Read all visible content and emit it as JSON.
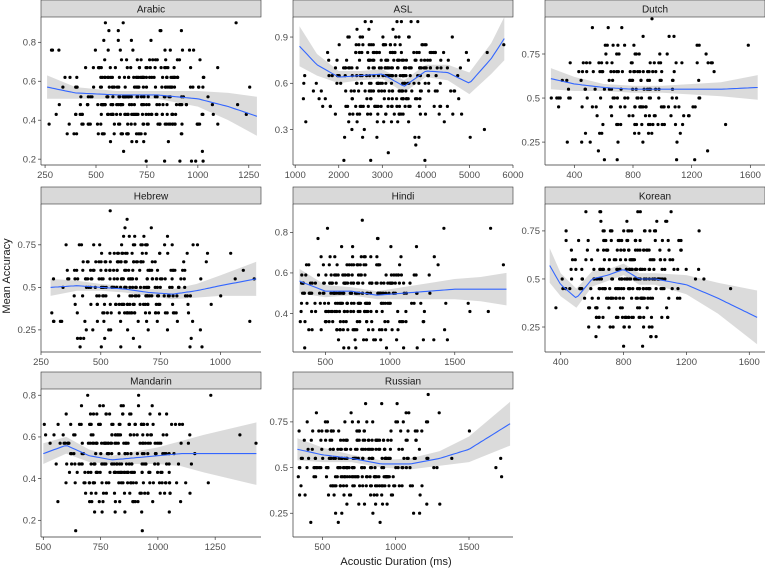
{
  "chart_data": {
    "type": "scatter",
    "xlabel": "Acoustic Duration (ms)",
    "ylabel": "Mean Accuracy",
    "colors": {
      "smooth": "#3366ff",
      "band": "#bdbdbd",
      "strip": "#d9d9d9",
      "points": "#000000"
    },
    "panels": [
      {
        "name": "Arabic",
        "xlim": [
          230,
          1310
        ],
        "ylim": [
          0.17,
          0.93
        ],
        "xticks": [
          250,
          500,
          750,
          1000,
          1250
        ],
        "yticks": [
          0.2,
          0.4,
          0.6,
          0.8
        ],
        "n_points": 330,
        "seed": 11,
        "x_range": [
          260,
          1290
        ],
        "x_center": 720,
        "x_spread": 190,
        "y_values": [
          0.19,
          0.24,
          0.29,
          0.33,
          0.38,
          0.43,
          0.48,
          0.52,
          0.57,
          0.62,
          0.67,
          0.71,
          0.76,
          0.81,
          0.86,
          0.9
        ],
        "y_center": 0.52,
        "y_spread": 0.14,
        "smooth": {
          "x": [
            260,
            400,
            600,
            800,
            1000,
            1150,
            1290
          ],
          "y": [
            0.57,
            0.54,
            0.53,
            0.53,
            0.51,
            0.47,
            0.42
          ]
        },
        "band": [
          0.06,
          0.03,
          0.02,
          0.02,
          0.04,
          0.07,
          0.1
        ]
      },
      {
        "name": "ASL",
        "xlim": [
          950,
          6000
        ],
        "ylim": [
          0.07,
          1.03
        ],
        "xticks": [
          1000,
          2000,
          3000,
          4000,
          5000,
          6000
        ],
        "yticks": [
          0.3,
          0.6,
          0.9
        ],
        "n_points": 330,
        "seed": 23,
        "x_range": [
          1100,
          5800
        ],
        "x_center": 3100,
        "x_spread": 750,
        "y_values": [
          0.1,
          0.15,
          0.2,
          0.25,
          0.3,
          0.35,
          0.4,
          0.45,
          0.5,
          0.55,
          0.6,
          0.65,
          0.7,
          0.75,
          0.8,
          0.85,
          0.9,
          0.95,
          1.0
        ],
        "y_center": 0.62,
        "y_spread": 0.18,
        "smooth": {
          "x": [
            1100,
            1500,
            2000,
            2500,
            3000,
            3500,
            4000,
            4500,
            5000,
            5500,
            5800
          ],
          "y": [
            0.84,
            0.72,
            0.64,
            0.65,
            0.66,
            0.58,
            0.68,
            0.67,
            0.6,
            0.76,
            0.89
          ]
        },
        "band": [
          0.13,
          0.07,
          0.04,
          0.03,
          0.03,
          0.04,
          0.04,
          0.05,
          0.07,
          0.1,
          0.14
        ]
      },
      {
        "name": "Dutch",
        "xlim": [
          200,
          1700
        ],
        "ylim": [
          0.12,
          0.96
        ],
        "xticks": [
          400,
          800,
          1200,
          1600
        ],
        "yticks": [
          0.25,
          0.5,
          0.75
        ],
        "n_points": 200,
        "seed": 37,
        "x_range": [
          240,
          1650
        ],
        "x_center": 800,
        "x_spread": 260,
        "y_values": [
          0.15,
          0.2,
          0.25,
          0.3,
          0.35,
          0.4,
          0.45,
          0.5,
          0.55,
          0.6,
          0.65,
          0.7,
          0.75,
          0.8,
          0.85,
          0.9,
          0.95
        ],
        "y_center": 0.55,
        "y_spread": 0.16,
        "smooth": {
          "x": [
            240,
            400,
            600,
            800,
            1000,
            1200,
            1400,
            1650
          ],
          "y": [
            0.61,
            0.58,
            0.56,
            0.55,
            0.55,
            0.55,
            0.55,
            0.56
          ]
        },
        "band": [
          0.06,
          0.04,
          0.02,
          0.02,
          0.02,
          0.03,
          0.04,
          0.07
        ]
      },
      {
        "name": "Hebrew",
        "xlim": [
          250,
          1170
        ],
        "ylim": [
          0.12,
          0.99
        ],
        "xticks": [
          250,
          500,
          750,
          1000
        ],
        "yticks": [
          0.25,
          0.5,
          0.75
        ],
        "n_points": 300,
        "seed": 41,
        "x_range": [
          290,
          1150
        ],
        "x_center": 620,
        "x_spread": 150,
        "y_values": [
          0.15,
          0.2,
          0.25,
          0.3,
          0.35,
          0.4,
          0.45,
          0.5,
          0.55,
          0.6,
          0.65,
          0.7,
          0.75,
          0.8,
          0.85,
          0.9,
          0.95
        ],
        "y_center": 0.5,
        "y_spread": 0.16,
        "smooth": {
          "x": [
            290,
            400,
            500,
            600,
            700,
            800,
            900,
            1000,
            1150
          ],
          "y": [
            0.5,
            0.51,
            0.5,
            0.49,
            0.47,
            0.46,
            0.48,
            0.51,
            0.55
          ]
        },
        "band": [
          0.05,
          0.03,
          0.02,
          0.02,
          0.02,
          0.03,
          0.04,
          0.06,
          0.1
        ]
      },
      {
        "name": "Hindi",
        "xlim": [
          250,
          1950
        ],
        "ylim": [
          0.21,
          0.94
        ],
        "xticks": [
          500,
          1000,
          1500
        ],
        "yticks": [
          0.4,
          0.6,
          0.8
        ],
        "n_points": 300,
        "seed": 53,
        "x_range": [
          300,
          1900
        ],
        "x_center": 700,
        "x_spread": 300,
        "y_values": [
          0.23,
          0.27,
          0.32,
          0.36,
          0.41,
          0.45,
          0.5,
          0.55,
          0.59,
          0.64,
          0.68,
          0.73,
          0.77,
          0.82,
          0.86,
          0.91
        ],
        "y_center": 0.5,
        "y_spread": 0.13,
        "smooth": {
          "x": [
            300,
            500,
            700,
            900,
            1100,
            1300,
            1500,
            1700,
            1900
          ],
          "y": [
            0.56,
            0.51,
            0.51,
            0.49,
            0.5,
            0.51,
            0.52,
            0.52,
            0.52
          ]
        },
        "band": [
          0.06,
          0.03,
          0.02,
          0.02,
          0.03,
          0.04,
          0.05,
          0.06,
          0.08
        ]
      },
      {
        "name": "Korean",
        "xlim": [
          300,
          1700
        ],
        "ylim": [
          0.12,
          0.89
        ],
        "xticks": [
          400,
          800,
          1200,
          1600
        ],
        "yticks": [
          0.25,
          0.5,
          0.75
        ],
        "n_points": 300,
        "seed": 67,
        "x_range": [
          330,
          1650
        ],
        "x_center": 800,
        "x_spread": 180,
        "y_values": [
          0.15,
          0.2,
          0.25,
          0.3,
          0.35,
          0.4,
          0.45,
          0.5,
          0.55,
          0.6,
          0.65,
          0.7,
          0.75,
          0.8,
          0.85
        ],
        "y_center": 0.5,
        "y_spread": 0.14,
        "smooth": {
          "x": [
            330,
            400,
            500,
            600,
            700,
            800,
            900,
            1000,
            1200,
            1400,
            1650
          ],
          "y": [
            0.57,
            0.47,
            0.4,
            0.5,
            0.52,
            0.55,
            0.5,
            0.5,
            0.47,
            0.4,
            0.3
          ]
        },
        "band": [
          0.09,
          0.06,
          0.05,
          0.04,
          0.03,
          0.03,
          0.03,
          0.03,
          0.05,
          0.08,
          0.14
        ]
      },
      {
        "name": "Mandarin",
        "xlim": [
          490,
          1450
        ],
        "ylim": [
          0.12,
          0.83
        ],
        "xticks": [
          500,
          750,
          1000,
          1250
        ],
        "yticks": [
          0.2,
          0.4,
          0.6,
          0.8
        ],
        "n_points": 300,
        "seed": 79,
        "x_range": [
          500,
          1430
        ],
        "x_center": 850,
        "x_spread": 140,
        "y_values": [
          0.15,
          0.2,
          0.24,
          0.29,
          0.33,
          0.38,
          0.43,
          0.47,
          0.52,
          0.57,
          0.61,
          0.66,
          0.71,
          0.75,
          0.8
        ],
        "y_center": 0.5,
        "y_spread": 0.13,
        "smooth": {
          "x": [
            500,
            600,
            700,
            800,
            900,
            1000,
            1100,
            1200,
            1430
          ],
          "y": [
            0.52,
            0.56,
            0.51,
            0.49,
            0.5,
            0.51,
            0.52,
            0.52,
            0.52
          ]
        },
        "band": [
          0.05,
          0.04,
          0.03,
          0.02,
          0.03,
          0.04,
          0.06,
          0.09,
          0.15
        ]
      },
      {
        "name": "Russian",
        "xlim": [
          300,
          1800
        ],
        "ylim": [
          0.12,
          0.93
        ],
        "xticks": [
          500,
          1000,
          1500
        ],
        "yticks": [
          0.25,
          0.5,
          0.75
        ],
        "n_points": 300,
        "seed": 97,
        "x_range": [
          330,
          1780
        ],
        "x_center": 750,
        "x_spread": 230,
        "y_values": [
          0.15,
          0.2,
          0.25,
          0.3,
          0.35,
          0.4,
          0.45,
          0.5,
          0.55,
          0.6,
          0.65,
          0.7,
          0.75,
          0.8,
          0.85,
          0.9
        ],
        "y_center": 0.52,
        "y_spread": 0.14,
        "smooth": {
          "x": [
            330,
            500,
            700,
            900,
            1100,
            1300,
            1500,
            1780
          ],
          "y": [
            0.6,
            0.57,
            0.55,
            0.52,
            0.52,
            0.55,
            0.6,
            0.74
          ]
        },
        "band": [
          0.06,
          0.04,
          0.02,
          0.02,
          0.03,
          0.04,
          0.07,
          0.12
        ]
      }
    ]
  }
}
